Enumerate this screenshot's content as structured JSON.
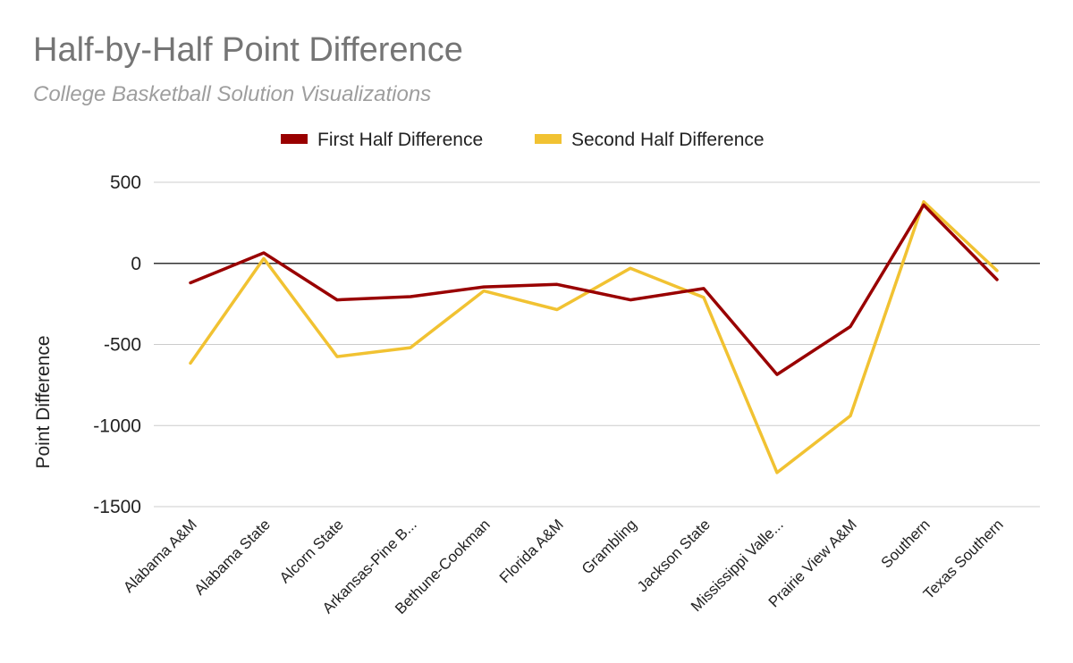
{
  "chart_data": {
    "type": "line",
    "title": "Half-by-Half Point Difference",
    "subtitle": "College Basketball Solution Visualizations",
    "xlabel": "",
    "ylabel": "Point Difference",
    "ylim": [
      -1500,
      500
    ],
    "yticks": [
      500,
      0,
      -500,
      -1000,
      -1500
    ],
    "legend_position": "top",
    "grid": true,
    "categories": [
      "Alabama A&M",
      "Alabama State",
      "Alcorn State",
      "Arkansas-Pine B...",
      "Bethune-Cookman",
      "Florida A&M",
      "Grambling",
      "Jackson State",
      "Mississippi Valle...",
      "Prairie View A&M",
      "Southern",
      "Texas Southern"
    ],
    "series": [
      {
        "name": "First Half Difference",
        "color": "#990000",
        "values": [
          -120,
          65,
          -225,
          -205,
          -145,
          -130,
          -225,
          -155,
          -685,
          -390,
          360,
          -100
        ]
      },
      {
        "name": "Second Half Difference",
        "color": "#f1c232",
        "values": [
          -615,
          30,
          -575,
          -520,
          -170,
          -285,
          -30,
          -210,
          -1290,
          -940,
          380,
          -45
        ]
      }
    ]
  }
}
